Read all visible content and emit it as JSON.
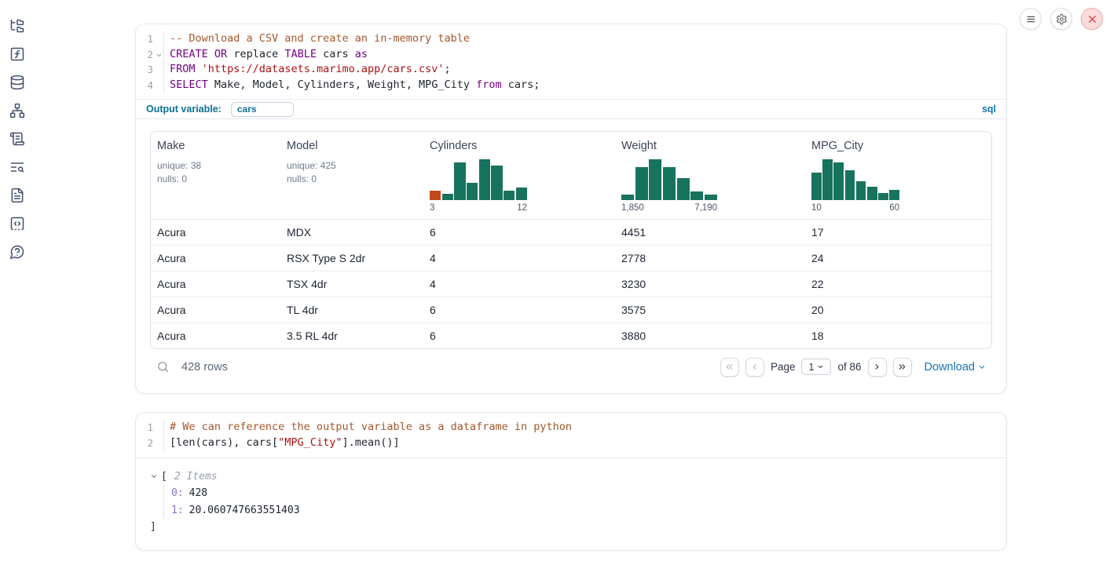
{
  "theme": {
    "hist_teal": "#17735e",
    "hist_orange": "#c2491d",
    "accent_blue": "#1375bd",
    "outvar_teal": "#0c7095",
    "danger_red": "#de4040",
    "code_keyword": "#770088",
    "code_string": "#aa1111",
    "code_comment": "#a4572b",
    "tree_key_purple": "#7b7bcf"
  },
  "sidebar": {
    "icons": [
      "file-tree",
      "function-square",
      "database",
      "dependency-graph",
      "scroll-text",
      "log-search",
      "document",
      "snippets",
      "help"
    ]
  },
  "window_controls": [
    "menu",
    "settings",
    "shutdown"
  ],
  "cells": [
    {
      "language_badge": "sql",
      "line_numbers": [
        "1",
        "2",
        "3",
        "4"
      ],
      "code": [
        {
          "tokens": [
            {
              "c": "com",
              "t": "-- Download a CSV and create an in-memory table"
            }
          ]
        },
        {
          "tokens": [
            {
              "c": "kw",
              "t": "CREATE"
            },
            {
              "c": "pl",
              "t": " "
            },
            {
              "c": "kw",
              "t": "OR"
            },
            {
              "c": "pl",
              "t": " replace "
            },
            {
              "c": "kw",
              "t": "TABLE"
            },
            {
              "c": "pl",
              "t": " cars "
            },
            {
              "c": "kw",
              "t": "as"
            }
          ]
        },
        {
          "tokens": [
            {
              "c": "kw",
              "t": "FROM"
            },
            {
              "c": "pl",
              "t": " "
            },
            {
              "c": "str",
              "t": "'https://datasets.marimo.app/cars.csv'"
            },
            {
              "c": "pl",
              "t": ";"
            }
          ]
        },
        {
          "tokens": [
            {
              "c": "kw",
              "t": "SELECT"
            },
            {
              "c": "pl",
              "t": " Make, Model, Cylinders, Weight, MPG_City "
            },
            {
              "c": "kw",
              "t": "from"
            },
            {
              "c": "pl",
              "t": " cars;"
            }
          ]
        }
      ],
      "output_variable_label": "Output variable:",
      "output_variable_value": "cars",
      "table": {
        "columns": [
          {
            "name": "Make",
            "unique": "unique: 38",
            "nulls": "nulls: 0"
          },
          {
            "name": "Model",
            "unique": "unique: 425",
            "nulls": "nulls: 0"
          },
          {
            "name": "Cylinders"
          },
          {
            "name": "Weight"
          },
          {
            "name": "MPG_City"
          }
        ],
        "rows": [
          [
            "Acura",
            "MDX",
            "6",
            "4451",
            "17"
          ],
          [
            "Acura",
            "RSX Type S 2dr",
            "4",
            "2778",
            "24"
          ],
          [
            "Acura",
            "TSX 4dr",
            "4",
            "3230",
            "22"
          ],
          [
            "Acura",
            "TL 4dr",
            "6",
            "3575",
            "20"
          ],
          [
            "Acura",
            "3.5 RL 4dr",
            "6",
            "3880",
            "18"
          ]
        ],
        "footer": {
          "row_count": "428 rows",
          "page_label": "Page",
          "page_value": "1",
          "of_label": "of 86",
          "download_label": "Download"
        }
      }
    },
    {
      "line_numbers": [
        "1",
        "2"
      ],
      "code": [
        {
          "tokens": [
            {
              "c": "com",
              "t": "# We can reference the output variable as a dataframe in python"
            }
          ]
        },
        {
          "tokens": [
            {
              "c": "pl",
              "t": "[len(cars), cars["
            },
            {
              "c": "str",
              "t": "\"MPG_City\""
            },
            {
              "c": "pl",
              "t": "].mean()]"
            }
          ]
        }
      ],
      "tree_output": {
        "open_bracket": "[",
        "items_label": "2 Items",
        "entries": [
          {
            "key": "0:",
            "value": "428"
          },
          {
            "key": "1:",
            "value": "20.060747663551403"
          }
        ],
        "close_bracket": "]"
      }
    }
  ],
  "chart_data": [
    {
      "type": "bar",
      "subtype": "histogram",
      "column": "Cylinders",
      "x_range": [
        3,
        12
      ],
      "x_tick_labels": [
        "3",
        "12"
      ],
      "bar_heights_rel": [
        0.23,
        0.15,
        0.92,
        0.42,
        1.0,
        0.85,
        0.23,
        0.31
      ],
      "bar_colors": [
        "#c2491d",
        "#17735e",
        "#17735e",
        "#17735e",
        "#17735e",
        "#17735e",
        "#17735e",
        "#17735e"
      ]
    },
    {
      "type": "bar",
      "subtype": "histogram",
      "column": "Weight",
      "x_range": [
        1850,
        7190
      ],
      "x_tick_labels": [
        "1,850",
        "7,190"
      ],
      "bar_heights_rel": [
        0.14,
        0.81,
        1.0,
        0.8,
        0.54,
        0.21,
        0.14
      ]
    },
    {
      "type": "bar",
      "subtype": "histogram",
      "column": "MPG_City",
      "x_range": [
        10,
        60
      ],
      "x_tick_labels": [
        "10",
        "60"
      ],
      "bar_heights_rel": [
        0.67,
        1.0,
        0.93,
        0.73,
        0.46,
        0.33,
        0.18,
        0.25
      ]
    }
  ]
}
